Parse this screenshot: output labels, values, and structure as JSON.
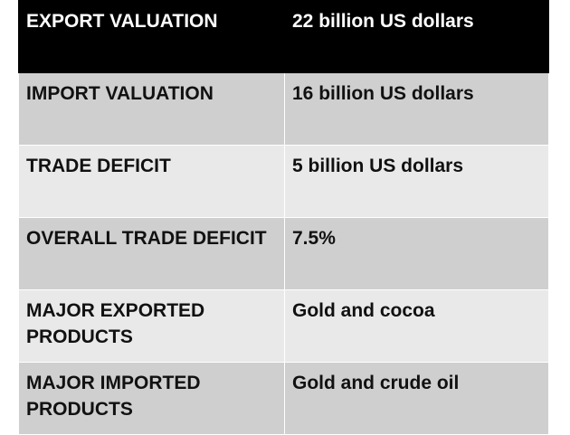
{
  "table": {
    "rows": [
      {
        "label": "EXPORT VALUATION",
        "value": "22 billion US dollars"
      },
      {
        "label": "IMPORT VALUATION",
        "value": "16 billion US dollars"
      },
      {
        "label": "TRADE DEFICIT",
        "value": "5 billion US dollars"
      },
      {
        "label": "OVERALL TRADE DEFICIT",
        "value": "7.5%"
      },
      {
        "label": "MAJOR EXPORTED PRODUCTS",
        "value": "Gold and cocoa"
      },
      {
        "label": "MAJOR IMPORTED PRODUCTS",
        "value": "Gold and crude oil"
      }
    ]
  },
  "colors": {
    "header_bg": "#000000",
    "header_text": "#ffffff",
    "row_dark_bg": "#cfcfcf",
    "row_light_bg": "#e9e9e9",
    "body_text": "#111111"
  }
}
